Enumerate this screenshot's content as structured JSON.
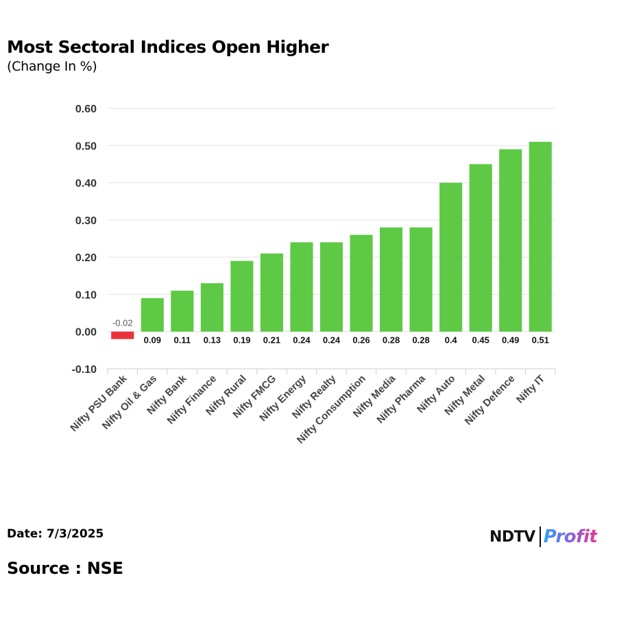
{
  "chart_data": {
    "type": "bar",
    "title": "Most Sectoral Indices Open Higher",
    "subtitle": "(Change In %)",
    "categories": [
      "Nifty PSU Bank",
      "Nifty Oil & Gas",
      "Nifty Bank",
      "Nifty Finance",
      "Nifty Rural",
      "Nifty FMCG",
      "Nifty Energy",
      "Nifty Realty",
      "Nifty Consumption",
      "Nifty Media",
      "Nifty Pharma",
      "Nifty Auto",
      "Nifty Metal",
      "Nifty Defence",
      "Nifty IT"
    ],
    "values": [
      -0.02,
      0.09,
      0.11,
      0.13,
      0.19,
      0.21,
      0.24,
      0.24,
      0.26,
      0.28,
      0.28,
      0.4,
      0.45,
      0.49,
      0.51
    ],
    "data_labels": [
      "-0.02",
      "0.09",
      "0.11",
      "0.13",
      "0.19",
      "0.21",
      "0.24",
      "0.24",
      "0.26",
      "0.28",
      "0.28",
      "0.4",
      "0.45",
      "0.49",
      "0.51"
    ],
    "y_ticks": [
      0.6,
      0.5,
      0.4,
      0.3,
      0.2,
      0.1,
      0.0,
      -0.1
    ],
    "y_tick_labels": [
      "0.60",
      "0.50",
      "0.40",
      "0.30",
      "0.20",
      "0.10",
      "0.00",
      "-0.10"
    ],
    "ylim": [
      -0.1,
      0.6
    ],
    "xlabel": "",
    "ylabel": "",
    "grid": true,
    "legend": "none",
    "colors": {
      "positive": "#5dc944",
      "negative": "#e8333b",
      "grid": "#e0e0e0",
      "axis": "#cccccc"
    }
  },
  "footer": {
    "date": "Date: 7/3/2025",
    "source": "Source : NSE"
  },
  "logo": {
    "brand": "NDTV",
    "product": "Profit"
  }
}
